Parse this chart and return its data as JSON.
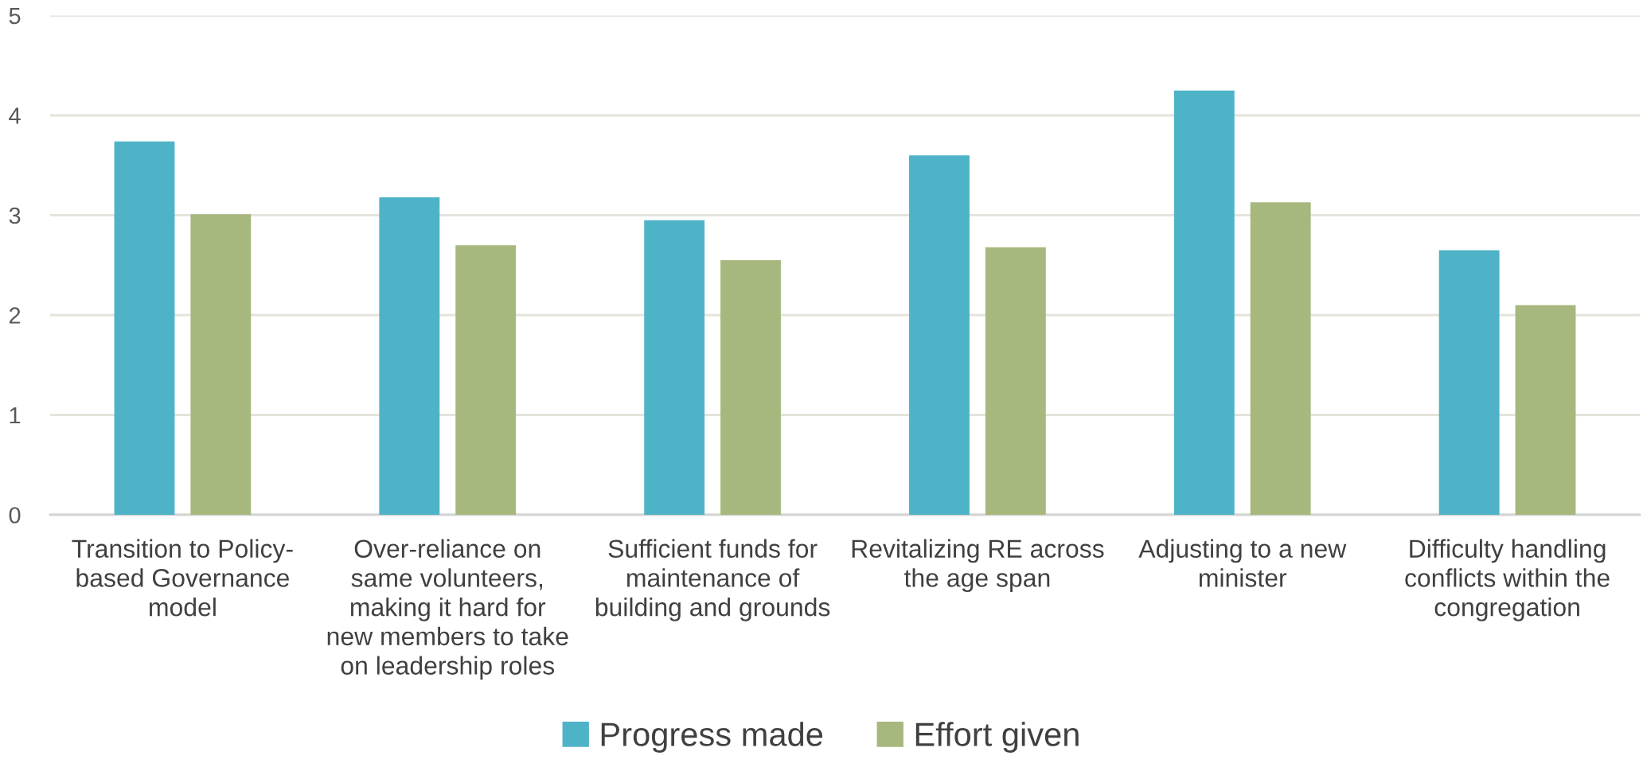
{
  "chart_data": {
    "type": "bar",
    "categories": [
      "Transition to Policy-\nbased Governance\nmodel",
      "Over-reliance on\nsame volunteers,\nmaking it hard for\nnew members to take\non leadership roles",
      "Sufficient funds for\nmaintenance of\nbuilding and grounds",
      "Revitalizing RE across\nthe age span",
      "Adjusting to a new\nminister",
      "Difficulty handling\nconflicts within the\ncongregation"
    ],
    "series": [
      {
        "name": "Progress made",
        "color": "#4fb3c8",
        "values": [
          3.74,
          3.18,
          2.95,
          3.6,
          4.25,
          2.65
        ]
      },
      {
        "name": "Effort given",
        "color": "#a7b87e",
        "values": [
          3.01,
          2.7,
          2.55,
          2.68,
          3.13,
          2.1
        ]
      }
    ],
    "ylim": [
      0,
      5
    ],
    "yticks": [
      0,
      1,
      2,
      3,
      4,
      5
    ],
    "grid": "y",
    "legend": "bottom"
  }
}
